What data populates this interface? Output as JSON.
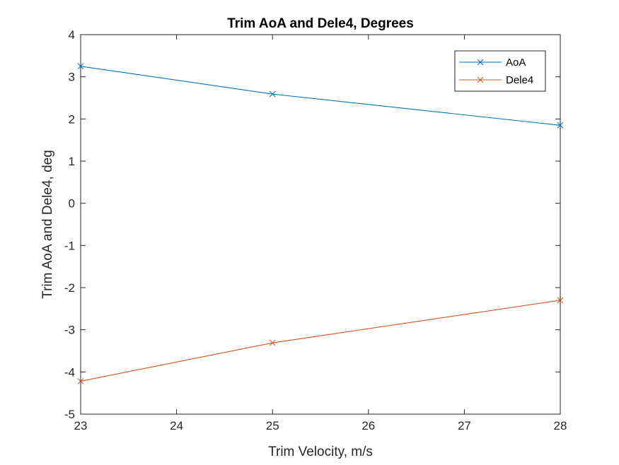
{
  "chart_data": {
    "type": "line",
    "title": "Trim AoA and Dele4, Degrees",
    "xlabel": "Trim Velocity, m/s",
    "ylabel": "Trim AoA and Dele4, deg",
    "xlim": [
      23,
      28
    ],
    "ylim": [
      -5,
      4
    ],
    "xticks": [
      23,
      24,
      25,
      26,
      27,
      28
    ],
    "yticks": [
      4,
      3,
      2,
      1,
      0,
      -1,
      -2,
      -3,
      -4,
      -5
    ],
    "grid": false,
    "legend_position": "top-right",
    "marker": "x",
    "x": [
      23,
      25,
      28
    ],
    "series": [
      {
        "name": "AoA",
        "color": "#0072BD",
        "values": [
          3.25,
          2.59,
          1.85
        ]
      },
      {
        "name": "Dele4",
        "color": "#D95319",
        "values": [
          -4.22,
          -3.31,
          -2.3
        ]
      }
    ]
  }
}
